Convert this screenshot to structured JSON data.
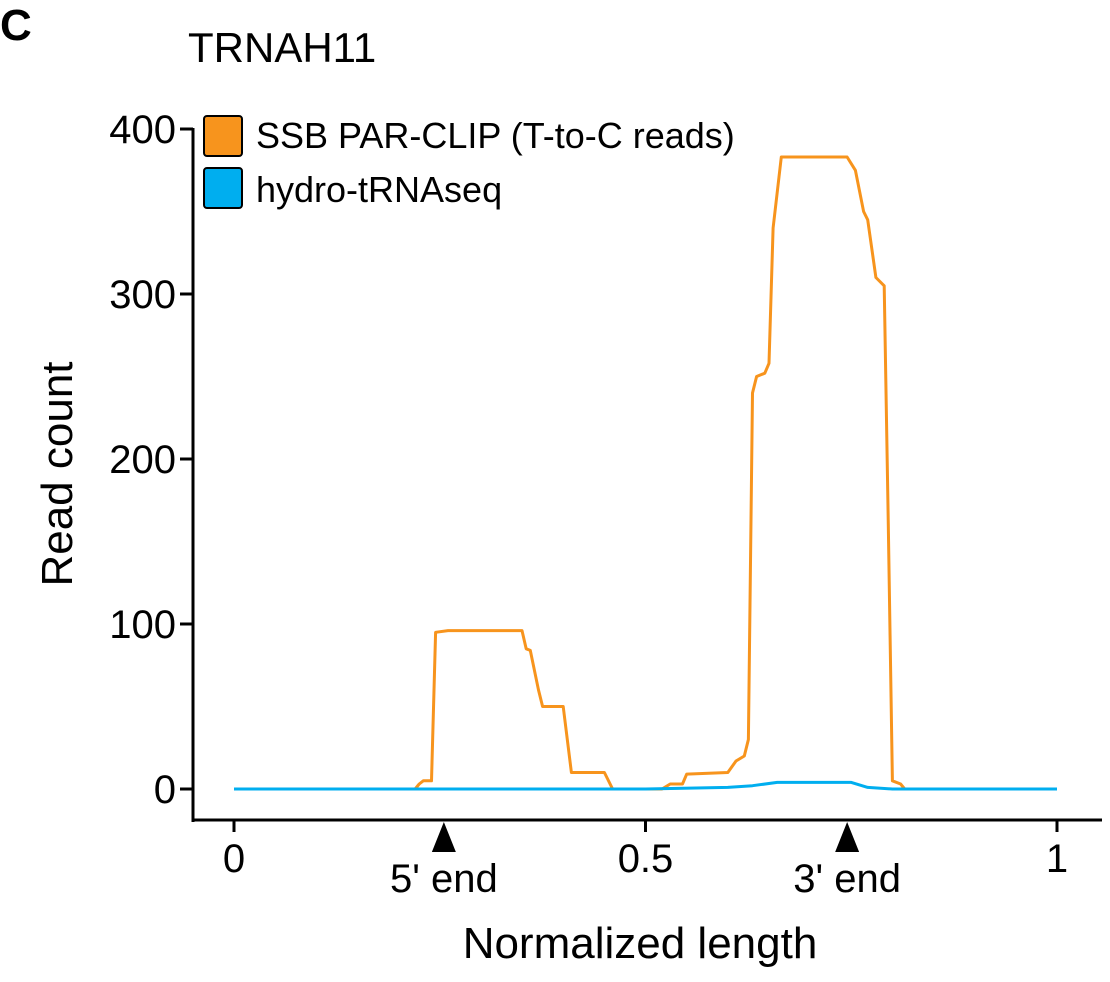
{
  "panel_label": "C",
  "chart_data": {
    "type": "line",
    "title": "TRNAH11",
    "xlabel": "Normalized length",
    "ylabel": "Read count",
    "xlim": [
      0,
      1
    ],
    "ylim": [
      0,
      400
    ],
    "x_ticks": [
      {
        "value": 0,
        "label": "0"
      },
      {
        "value": 0.5,
        "label": "0.5"
      },
      {
        "value": 1,
        "label": "1"
      }
    ],
    "y_ticks": [
      {
        "value": 0,
        "label": "0"
      },
      {
        "value": 100,
        "label": "100"
      },
      {
        "value": 200,
        "label": "200"
      },
      {
        "value": 300,
        "label": "300"
      },
      {
        "value": 400,
        "label": "400"
      }
    ],
    "markers": [
      {
        "x": 0.255,
        "label": "5' end"
      },
      {
        "x": 0.745,
        "label": "3' end"
      }
    ],
    "legend_position": "top-left",
    "series": [
      {
        "name": "SSB PAR-CLIP (T-to-C reads)",
        "color": "#F7941D",
        "points": [
          [
            0.22,
            0
          ],
          [
            0.225,
            3
          ],
          [
            0.23,
            5
          ],
          [
            0.24,
            5
          ],
          [
            0.245,
            95
          ],
          [
            0.26,
            96
          ],
          [
            0.35,
            96
          ],
          [
            0.355,
            85
          ],
          [
            0.36,
            84
          ],
          [
            0.37,
            60
          ],
          [
            0.375,
            50
          ],
          [
            0.4,
            50
          ],
          [
            0.41,
            10
          ],
          [
            0.45,
            10
          ],
          [
            0.46,
            0
          ],
          [
            0.52,
            0
          ],
          [
            0.53,
            3
          ],
          [
            0.545,
            3
          ],
          [
            0.55,
            9
          ],
          [
            0.6,
            10
          ],
          [
            0.61,
            17
          ],
          [
            0.62,
            20
          ],
          [
            0.625,
            30
          ],
          [
            0.63,
            240
          ],
          [
            0.635,
            250
          ],
          [
            0.645,
            252
          ],
          [
            0.65,
            258
          ],
          [
            0.655,
            340
          ],
          [
            0.665,
            383
          ],
          [
            0.745,
            383
          ],
          [
            0.755,
            375
          ],
          [
            0.765,
            350
          ],
          [
            0.77,
            345
          ],
          [
            0.78,
            310
          ],
          [
            0.79,
            305
          ],
          [
            0.795,
            160
          ],
          [
            0.8,
            5
          ],
          [
            0.81,
            3
          ],
          [
            0.815,
            0
          ]
        ]
      },
      {
        "name": "hydro-tRNAseq",
        "color": "#00AEEF",
        "points": [
          [
            0,
            0
          ],
          [
            0.5,
            0
          ],
          [
            0.6,
            1
          ],
          [
            0.63,
            2
          ],
          [
            0.66,
            4
          ],
          [
            0.75,
            4
          ],
          [
            0.77,
            1
          ],
          [
            0.8,
            0
          ],
          [
            1,
            0
          ]
        ]
      }
    ]
  }
}
